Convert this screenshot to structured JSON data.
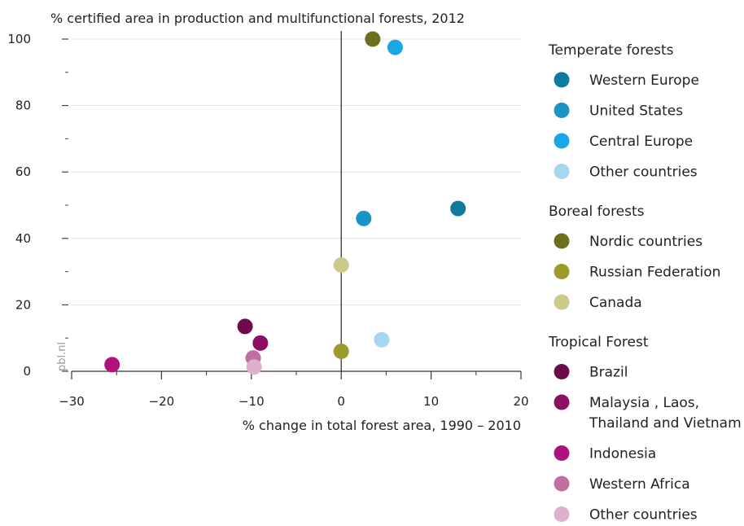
{
  "chart_data": {
    "type": "scatter",
    "title": "% certified area in production and multifunctional forests, 2012",
    "xlabel": "% change in total forest area, 1990 – 2010",
    "ylabel": "",
    "xlim": [
      -30,
      20
    ],
    "ylim": [
      0,
      100
    ],
    "xticks": [
      "-30",
      "-20",
      "-10",
      "0",
      "10",
      "20"
    ],
    "yticks": [
      "0",
      "20",
      "40",
      "60",
      "80",
      "100"
    ],
    "grid": true,
    "legend_position": "right",
    "credit": "pbl.nl",
    "groups": [
      {
        "heading": "Temperate forests",
        "series": [
          {
            "name": "Western Europe",
            "color": "#0f7a9e",
            "points": [
              {
                "x": 13,
                "y": 49
              }
            ]
          },
          {
            "name": "United States",
            "color": "#1a93c5",
            "points": [
              {
                "x": 2.5,
                "y": 46
              }
            ]
          },
          {
            "name": "Central Europe",
            "color": "#1aa7e3",
            "points": [
              {
                "x": 6,
                "y": 97.5
              }
            ]
          },
          {
            "name": "Other countries",
            "color": "#a7d6f2",
            "points": [
              {
                "x": 4.5,
                "y": 9.5
              }
            ]
          }
        ]
      },
      {
        "heading": "Boreal forests",
        "series": [
          {
            "name": "Nordic countries",
            "color": "#6b6f1e",
            "points": [
              {
                "x": 3.5,
                "y": 100
              }
            ]
          },
          {
            "name": "Russian Federation",
            "color": "#9b9b2a",
            "points": [
              {
                "x": 0,
                "y": 6
              }
            ]
          },
          {
            "name": "Canada",
            "color": "#cdc98a",
            "points": [
              {
                "x": 0,
                "y": 32
              }
            ]
          }
        ]
      },
      {
        "heading": "Tropical Forest",
        "series": [
          {
            "name": "Brazil",
            "color": "#6d0a4a",
            "points": [
              {
                "x": -10.7,
                "y": 13.5
              }
            ]
          },
          {
            "name": "Malaysia , Laos,\nThailand and Vietnam",
            "color": "#8c0e62",
            "points": [
              {
                "x": -9,
                "y": 8.5
              }
            ]
          },
          {
            "name": "Indonesia",
            "color": "#b0117a",
            "points": [
              {
                "x": -25.5,
                "y": 2
              }
            ]
          },
          {
            "name": "Western Africa",
            "color": "#c06fa0",
            "points": [
              {
                "x": -9.8,
                "y": 4
              }
            ]
          },
          {
            "name": "Other countries",
            "color": "#dfb0cc",
            "points": [
              {
                "x": -9.7,
                "y": 1.3
              }
            ]
          }
        ]
      }
    ]
  }
}
